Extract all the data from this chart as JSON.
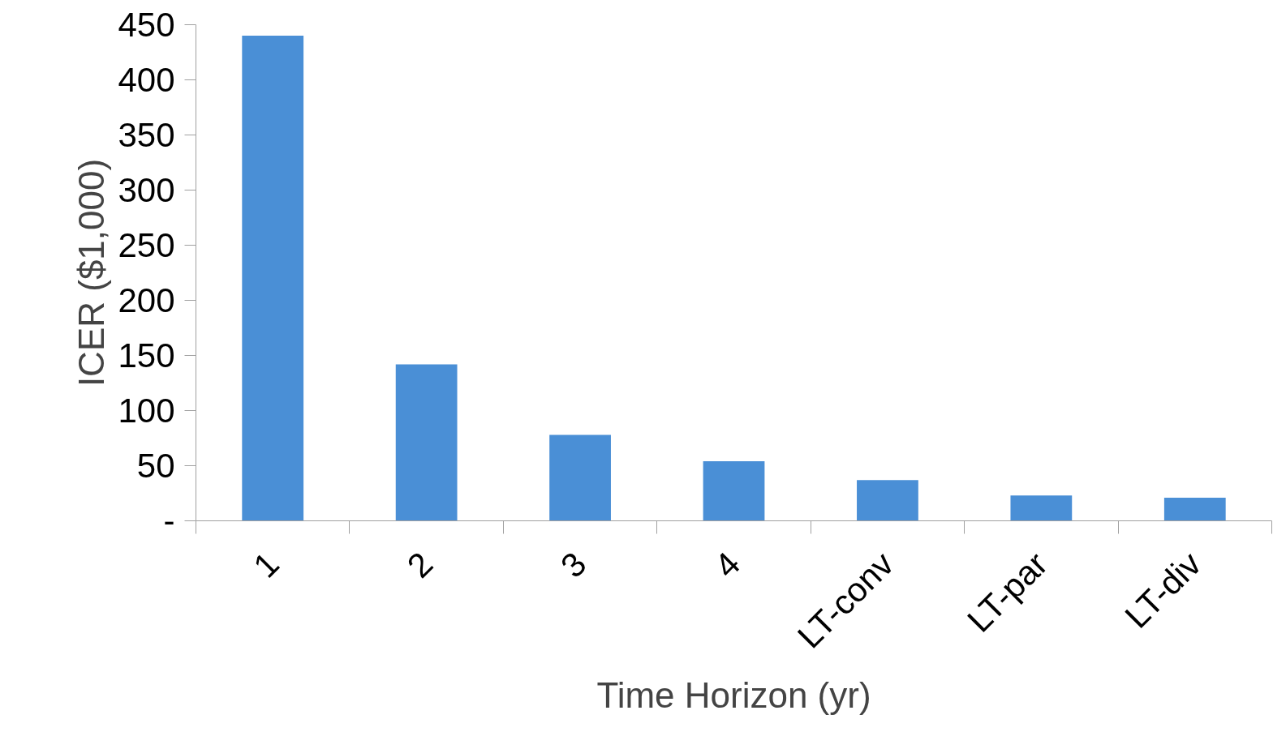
{
  "chart_data": {
    "type": "bar",
    "xlabel": "Time Horizon (yr)",
    "ylabel": "ICER ($1,000)",
    "categories": [
      "1",
      "2",
      "3",
      "4",
      "LT-conv",
      "LT-par",
      "LT-div"
    ],
    "values": [
      440,
      142,
      78,
      54,
      37,
      23,
      21
    ],
    "color": "#4a8fd6",
    "ylim": [
      0,
      450
    ],
    "yticks": [
      {
        "value": 0,
        "label": "-"
      },
      50,
      100,
      150,
      200,
      250,
      300,
      350,
      400,
      450
    ],
    "grid": false
  }
}
